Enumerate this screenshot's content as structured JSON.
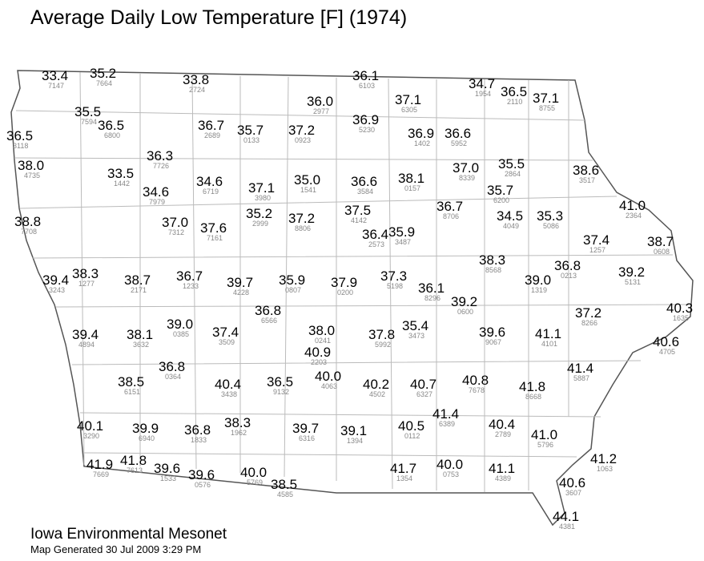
{
  "title": "Average Daily Low Temperature [F] (1974)",
  "stations": [
    {
      "value": "33.4",
      "id": "7147"
    },
    {
      "value": "35.2",
      "id": "7664"
    },
    {
      "value": "33.8",
      "id": "2724"
    },
    {
      "value": "36.1",
      "id": "6103"
    },
    {
      "value": "34.7",
      "id": "1954"
    },
    {
      "value": "36.5",
      "id": "2110"
    },
    {
      "value": "37.1",
      "id": "8755"
    },
    {
      "value": "36.0",
      "id": "2977"
    },
    {
      "value": "37.1",
      "id": "6305"
    },
    {
      "value": "35.5",
      "id": "7594"
    },
    {
      "value": "36.5",
      "id": "6800"
    },
    {
      "value": "36.5",
      "id": "3118"
    },
    {
      "value": "36.7",
      "id": "2689"
    },
    {
      "value": "35.7",
      "id": "0133"
    },
    {
      "value": "37.2",
      "id": "0923"
    },
    {
      "value": "36.9",
      "id": "5230"
    },
    {
      "value": "36.9",
      "id": "1402"
    },
    {
      "value": "36.6",
      "id": "5952"
    },
    {
      "value": "38.0",
      "id": "4735"
    },
    {
      "value": "36.3",
      "id": "7726"
    },
    {
      "value": "33.5",
      "id": "1442"
    },
    {
      "value": "34.6",
      "id": "7979"
    },
    {
      "value": "34.6",
      "id": "6719"
    },
    {
      "value": "37.1",
      "id": "3980"
    },
    {
      "value": "35.0",
      "id": "1541"
    },
    {
      "value": "36.6",
      "id": "3584"
    },
    {
      "value": "38.1",
      "id": "0157"
    },
    {
      "value": "37.0",
      "id": "8339"
    },
    {
      "value": "35.5",
      "id": "2864"
    },
    {
      "value": "38.6",
      "id": "3517"
    },
    {
      "value": "35.7",
      "id": "6200"
    },
    {
      "value": "41.0",
      "id": "2364"
    },
    {
      "value": "38.8",
      "id": "7708"
    },
    {
      "value": "37.0",
      "id": "7312"
    },
    {
      "value": "37.6",
      "id": "7161"
    },
    {
      "value": "35.2",
      "id": "2999"
    },
    {
      "value": "37.2",
      "id": "8806"
    },
    {
      "value": "37.5",
      "id": "4142"
    },
    {
      "value": "36.7",
      "id": "8706"
    },
    {
      "value": "34.5",
      "id": "4049"
    },
    {
      "value": "35.3",
      "id": "5086"
    },
    {
      "value": "36.4",
      "id": "2573"
    },
    {
      "value": "35.9",
      "id": "3487"
    },
    {
      "value": "37.4",
      "id": "1257"
    },
    {
      "value": "38.7",
      "id": "0608"
    },
    {
      "value": "39.4",
      "id": "3243"
    },
    {
      "value": "38.3",
      "id": "1277"
    },
    {
      "value": "38.7",
      "id": "2171"
    },
    {
      "value": "36.7",
      "id": "1233"
    },
    {
      "value": "39.7",
      "id": "4228"
    },
    {
      "value": "35.9",
      "id": "0807"
    },
    {
      "value": "37.9",
      "id": "0200"
    },
    {
      "value": "37.3",
      "id": "5198"
    },
    {
      "value": "38.3",
      "id": "8568"
    },
    {
      "value": "36.8",
      "id": "0213"
    },
    {
      "value": "39.2",
      "id": "5131"
    },
    {
      "value": "39.0",
      "id": "1319"
    },
    {
      "value": "36.1",
      "id": "8296"
    },
    {
      "value": "39.2",
      "id": "0600"
    },
    {
      "value": "36.8",
      "id": "6566"
    },
    {
      "value": "40.3",
      "id": "1635"
    },
    {
      "value": "37.2",
      "id": "8266"
    },
    {
      "value": "39.4",
      "id": "4894"
    },
    {
      "value": "38.1",
      "id": "3632"
    },
    {
      "value": "39.0",
      "id": "0385"
    },
    {
      "value": "37.4",
      "id": "3509"
    },
    {
      "value": "38.0",
      "id": "0241"
    },
    {
      "value": "37.8",
      "id": "5992"
    },
    {
      "value": "35.4",
      "id": "3473"
    },
    {
      "value": "39.6",
      "id": "9067"
    },
    {
      "value": "41.1",
      "id": "4101"
    },
    {
      "value": "40.6",
      "id": "4705"
    },
    {
      "value": "40.9",
      "id": "2203"
    },
    {
      "value": "36.8",
      "id": "0364"
    },
    {
      "value": "41.4",
      "id": "5887"
    },
    {
      "value": "38.5",
      "id": "6151"
    },
    {
      "value": "40.4",
      "id": "3438"
    },
    {
      "value": "36.5",
      "id": "9132"
    },
    {
      "value": "40.0",
      "id": "4063"
    },
    {
      "value": "40.2",
      "id": "4502"
    },
    {
      "value": "40.7",
      "id": "6327"
    },
    {
      "value": "40.8",
      "id": "7678"
    },
    {
      "value": "41.8",
      "id": "8668"
    },
    {
      "value": "41.4",
      "id": "6389"
    },
    {
      "value": "40.1",
      "id": "3290"
    },
    {
      "value": "39.9",
      "id": "6940"
    },
    {
      "value": "36.8",
      "id": "1833"
    },
    {
      "value": "38.3",
      "id": "1962"
    },
    {
      "value": "39.7",
      "id": "6316"
    },
    {
      "value": "39.1",
      "id": "1394"
    },
    {
      "value": "40.5",
      "id": "0112"
    },
    {
      "value": "40.4",
      "id": "2789"
    },
    {
      "value": "41.0",
      "id": "5796"
    },
    {
      "value": "41.2",
      "id": "1063"
    },
    {
      "value": "41.9",
      "id": "7669"
    },
    {
      "value": "41.8",
      "id": "7613"
    },
    {
      "value": "39.6",
      "id": "1533"
    },
    {
      "value": "39.6",
      "id": "0576"
    },
    {
      "value": "40.0",
      "id": "5769"
    },
    {
      "value": "38.5",
      "id": "4585"
    },
    {
      "value": "41.7",
      "id": "1354"
    },
    {
      "value": "40.0",
      "id": "0753"
    },
    {
      "value": "41.1",
      "id": "4389"
    },
    {
      "value": "40.6",
      "id": "3607"
    },
    {
      "value": "44.1",
      "id": "4381"
    }
  ],
  "footer": {
    "org": "Iowa Environmental Mesonet",
    "generated": "Map Generated 30 Jul 2009 3:29 PM"
  }
}
